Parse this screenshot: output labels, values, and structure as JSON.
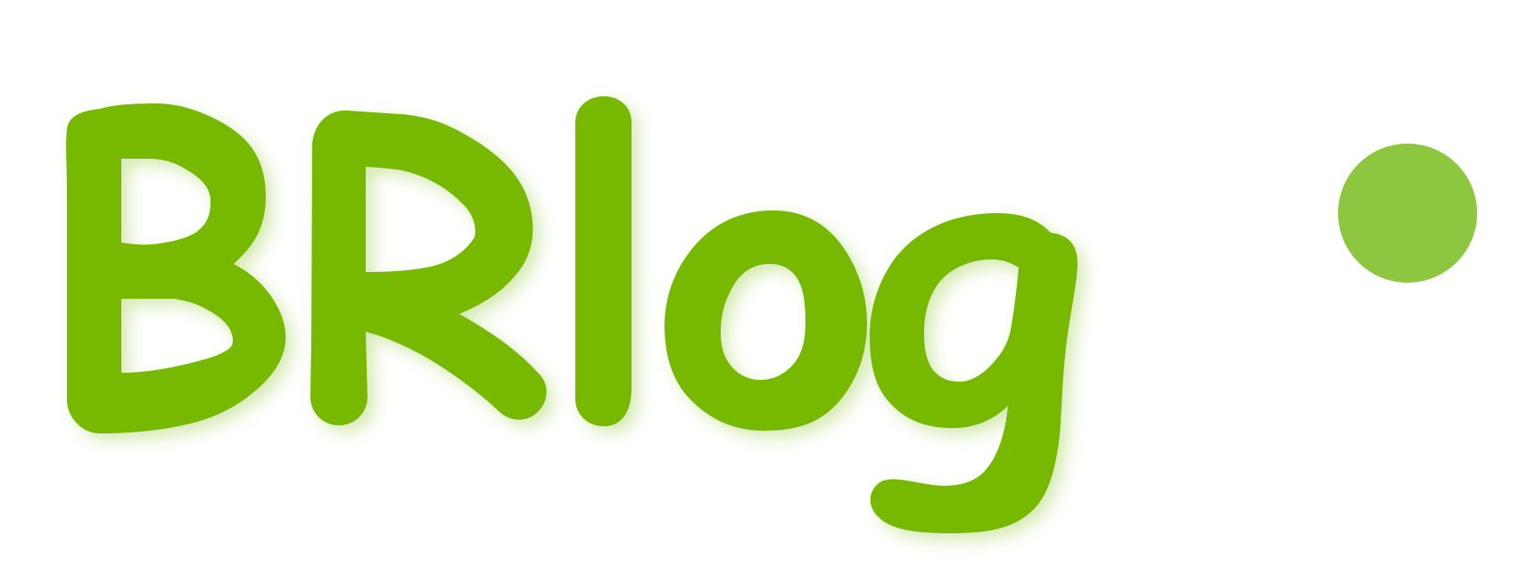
{
  "logo": {
    "wordmark": "BRlog",
    "colors": {
      "letters": "#77b800",
      "dot": "#8dc63f",
      "glow": "#cfe6a4",
      "background": "#ffffff"
    },
    "icons": [
      "dot-icon"
    ]
  }
}
